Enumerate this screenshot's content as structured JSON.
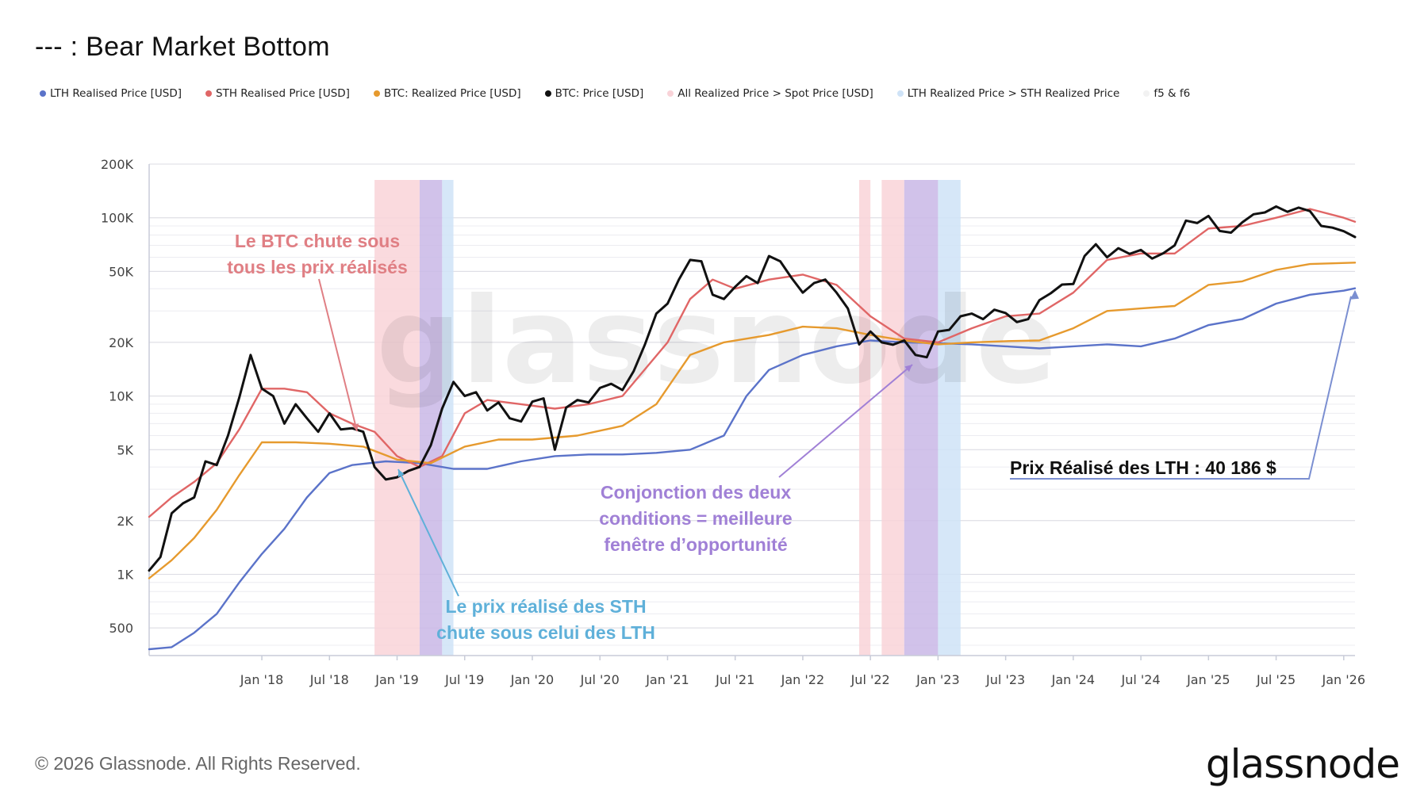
{
  "title": "--- : Bear Market Bottom",
  "legend": [
    {
      "label": "LTH Realised Price [USD]",
      "color": "#5b73c9"
    },
    {
      "label": "STH Realised Price [USD]",
      "color": "#e06666"
    },
    {
      "label": "BTC: Realized Price [USD]",
      "color": "#e69a2e"
    },
    {
      "label": "BTC: Price [USD]",
      "color": "#111111"
    },
    {
      "label": "All Realized Price > Spot Price [USD]",
      "color": "#f9d3d8"
    },
    {
      "label": "LTH Realized Price > STH Realized Price",
      "color": "#cfe3f7"
    },
    {
      "label": "f5 & f6",
      "color": "#f2f2f2"
    }
  ],
  "footer": "© 2026 Glassnode. All Rights Reserved.",
  "logo": "glassnode",
  "watermark": "glassnode",
  "chart_data": {
    "type": "line",
    "y_scale": "log",
    "ylim": [
      350,
      200000
    ],
    "xlim": [
      "2017-03",
      "2026-02"
    ],
    "yticks": [
      {
        "value": 500,
        "label": "500"
      },
      {
        "value": 1000,
        "label": "1K"
      },
      {
        "value": 2000,
        "label": "2K"
      },
      {
        "value": 5000,
        "label": "5K"
      },
      {
        "value": 10000,
        "label": "10K"
      },
      {
        "value": 20000,
        "label": "20K"
      },
      {
        "value": 50000,
        "label": "50K"
      },
      {
        "value": 100000,
        "label": "100K"
      },
      {
        "value": 200000,
        "label": "200K"
      }
    ],
    "xticks": [
      {
        "t": "2018-01",
        "label": "Jan '18"
      },
      {
        "t": "2018-07",
        "label": "Jul '18"
      },
      {
        "t": "2019-01",
        "label": "Jan '19"
      },
      {
        "t": "2019-07",
        "label": "Jul '19"
      },
      {
        "t": "2020-01",
        "label": "Jan '20"
      },
      {
        "t": "2020-07",
        "label": "Jul '20"
      },
      {
        "t": "2021-01",
        "label": "Jan '21"
      },
      {
        "t": "2021-07",
        "label": "Jul '21"
      },
      {
        "t": "2022-01",
        "label": "Jan '22"
      },
      {
        "t": "2022-07",
        "label": "Jul '22"
      },
      {
        "t": "2023-01",
        "label": "Jan '23"
      },
      {
        "t": "2023-07",
        "label": "Jul '23"
      },
      {
        "t": "2024-01",
        "label": "Jan '24"
      },
      {
        "t": "2024-07",
        "label": "Jul '24"
      },
      {
        "t": "2025-01",
        "label": "Jan '25"
      },
      {
        "t": "2025-07",
        "label": "Jul '25"
      },
      {
        "t": "2026-01",
        "label": "Jan '26"
      }
    ],
    "bands": [
      {
        "kind": "all_realized_above_spot",
        "color": "#f9d3d8",
        "from": "2018-11",
        "to": "2019-03"
      },
      {
        "kind": "both",
        "color": "#c9b7e6",
        "from": "2019-03",
        "to": "2019-05"
      },
      {
        "kind": "lth_above_sth",
        "color": "#cfe3f7",
        "from": "2019-05",
        "to": "2019-06"
      },
      {
        "kind": "all_realized_above_spot",
        "color": "#f9d3d8",
        "from": "2022-06",
        "to": "2022-07"
      },
      {
        "kind": "all_realized_above_spot",
        "color": "#f9d3d8",
        "from": "2022-08",
        "to": "2022-10"
      },
      {
        "kind": "both",
        "color": "#c9b7e6",
        "from": "2022-10",
        "to": "2023-01"
      },
      {
        "kind": "lth_above_sth",
        "color": "#cfe3f7",
        "from": "2023-01",
        "to": "2023-03"
      }
    ],
    "series": [
      {
        "name": "LTH Realised Price [USD]",
        "color": "#5b73c9",
        "points": [
          [
            "2017-03",
            380
          ],
          [
            "2017-05",
            390
          ],
          [
            "2017-07",
            470
          ],
          [
            "2017-09",
            600
          ],
          [
            "2017-11",
            900
          ],
          [
            "2018-01",
            1300
          ],
          [
            "2018-03",
            1800
          ],
          [
            "2018-05",
            2700
          ],
          [
            "2018-07",
            3700
          ],
          [
            "2018-09",
            4100
          ],
          [
            "2018-12",
            4300
          ],
          [
            "2019-03",
            4200
          ],
          [
            "2019-06",
            3900
          ],
          [
            "2019-09",
            3900
          ],
          [
            "2019-12",
            4300
          ],
          [
            "2020-03",
            4600
          ],
          [
            "2020-06",
            4700
          ],
          [
            "2020-09",
            4700
          ],
          [
            "2020-12",
            4800
          ],
          [
            "2021-03",
            5000
          ],
          [
            "2021-06",
            6000
          ],
          [
            "2021-08",
            10000
          ],
          [
            "2021-10",
            14000
          ],
          [
            "2022-01",
            17000
          ],
          [
            "2022-04",
            19000
          ],
          [
            "2022-07",
            20500
          ],
          [
            "2022-10",
            20000
          ],
          [
            "2023-01",
            19800
          ],
          [
            "2023-04",
            19500
          ],
          [
            "2023-07",
            19000
          ],
          [
            "2023-10",
            18500
          ],
          [
            "2024-01",
            19000
          ],
          [
            "2024-04",
            19500
          ],
          [
            "2024-07",
            19000
          ],
          [
            "2024-10",
            21000
          ],
          [
            "2025-01",
            25000
          ],
          [
            "2025-04",
            27000
          ],
          [
            "2025-07",
            33000
          ],
          [
            "2025-10",
            37000
          ],
          [
            "2026-01",
            39000
          ],
          [
            "2026-02",
            40186
          ]
        ]
      },
      {
        "name": "STH Realised Price [USD]",
        "color": "#e06666",
        "points": [
          [
            "2017-03",
            2100
          ],
          [
            "2017-05",
            2700
          ],
          [
            "2017-07",
            3300
          ],
          [
            "2017-09",
            4200
          ],
          [
            "2017-11",
            6500
          ],
          [
            "2018-01",
            11000
          ],
          [
            "2018-03",
            11000
          ],
          [
            "2018-05",
            10500
          ],
          [
            "2018-07",
            8000
          ],
          [
            "2018-09",
            7000
          ],
          [
            "2018-11",
            6300
          ],
          [
            "2019-01",
            4600
          ],
          [
            "2019-03",
            4000
          ],
          [
            "2019-05",
            4600
          ],
          [
            "2019-07",
            8000
          ],
          [
            "2019-09",
            9500
          ],
          [
            "2019-12",
            9000
          ],
          [
            "2020-03",
            8500
          ],
          [
            "2020-06",
            9000
          ],
          [
            "2020-09",
            10000
          ],
          [
            "2021-01",
            20000
          ],
          [
            "2021-03",
            35000
          ],
          [
            "2021-05",
            45000
          ],
          [
            "2021-07",
            40000
          ],
          [
            "2021-10",
            45000
          ],
          [
            "2022-01",
            48000
          ],
          [
            "2022-04",
            42000
          ],
          [
            "2022-07",
            28000
          ],
          [
            "2022-10",
            21000
          ],
          [
            "2023-01",
            20000
          ],
          [
            "2023-04",
            24000
          ],
          [
            "2023-07",
            28000
          ],
          [
            "2023-10",
            29000
          ],
          [
            "2024-01",
            38000
          ],
          [
            "2024-04",
            58000
          ],
          [
            "2024-07",
            63000
          ],
          [
            "2024-10",
            63000
          ],
          [
            "2025-01",
            87000
          ],
          [
            "2025-04",
            90000
          ],
          [
            "2025-07",
            100000
          ],
          [
            "2025-10",
            112000
          ],
          [
            "2026-01",
            100000
          ],
          [
            "2026-02",
            95000
          ]
        ]
      },
      {
        "name": "BTC: Realized Price [USD]",
        "color": "#e69a2e",
        "points": [
          [
            "2017-03",
            950
          ],
          [
            "2017-05",
            1200
          ],
          [
            "2017-07",
            1600
          ],
          [
            "2017-09",
            2300
          ],
          [
            "2017-11",
            3600
          ],
          [
            "2018-01",
            5500
          ],
          [
            "2018-04",
            5500
          ],
          [
            "2018-07",
            5400
          ],
          [
            "2018-10",
            5200
          ],
          [
            "2019-01",
            4400
          ],
          [
            "2019-04",
            4200
          ],
          [
            "2019-07",
            5200
          ],
          [
            "2019-10",
            5700
          ],
          [
            "2020-01",
            5700
          ],
          [
            "2020-05",
            6000
          ],
          [
            "2020-09",
            6800
          ],
          [
            "2020-12",
            9000
          ],
          [
            "2021-03",
            17000
          ],
          [
            "2021-06",
            20000
          ],
          [
            "2021-10",
            22000
          ],
          [
            "2022-01",
            24500
          ],
          [
            "2022-04",
            24000
          ],
          [
            "2022-07",
            22000
          ],
          [
            "2022-10",
            20500
          ],
          [
            "2023-01",
            19500
          ],
          [
            "2023-04",
            20000
          ],
          [
            "2023-07",
            20300
          ],
          [
            "2023-10",
            20500
          ],
          [
            "2024-01",
            24000
          ],
          [
            "2024-04",
            30000
          ],
          [
            "2024-07",
            31000
          ],
          [
            "2024-10",
            32000
          ],
          [
            "2025-01",
            42000
          ],
          [
            "2025-04",
            44000
          ],
          [
            "2025-07",
            51000
          ],
          [
            "2025-10",
            55000
          ],
          [
            "2026-02",
            56000
          ]
        ]
      },
      {
        "name": "BTC: Price [USD]",
        "color": "#111111",
        "points": [
          [
            "2017-03",
            1050
          ],
          [
            "2017-04",
            1250
          ],
          [
            "2017-05",
            2200
          ],
          [
            "2017-06",
            2500
          ],
          [
            "2017-07",
            2700
          ],
          [
            "2017-08",
            4300
          ],
          [
            "2017-09",
            4100
          ],
          [
            "2017-10",
            6000
          ],
          [
            "2017-11",
            9800
          ],
          [
            "2017-12",
            17000
          ],
          [
            "2018-01",
            11000
          ],
          [
            "2018-02",
            10000
          ],
          [
            "2018-03",
            7000
          ],
          [
            "2018-04",
            9000
          ],
          [
            "2018-05",
            7500
          ],
          [
            "2018-06",
            6300
          ],
          [
            "2018-07",
            8000
          ],
          [
            "2018-08",
            6500
          ],
          [
            "2018-09",
            6600
          ],
          [
            "2018-10",
            6300
          ],
          [
            "2018-11",
            4000
          ],
          [
            "2018-12",
            3400
          ],
          [
            "2019-01",
            3500
          ],
          [
            "2019-02",
            3800
          ],
          [
            "2019-03",
            4000
          ],
          [
            "2019-04",
            5300
          ],
          [
            "2019-05",
            8500
          ],
          [
            "2019-06",
            12000
          ],
          [
            "2019-07",
            10000
          ],
          [
            "2019-08",
            10500
          ],
          [
            "2019-09",
            8300
          ],
          [
            "2019-10",
            9200
          ],
          [
            "2019-11",
            7500
          ],
          [
            "2019-12",
            7200
          ],
          [
            "2020-01",
            9300
          ],
          [
            "2020-02",
            9700
          ],
          [
            "2020-03",
            5000
          ],
          [
            "2020-04",
            8600
          ],
          [
            "2020-05",
            9500
          ],
          [
            "2020-06",
            9200
          ],
          [
            "2020-07",
            11100
          ],
          [
            "2020-08",
            11700
          ],
          [
            "2020-09",
            10800
          ],
          [
            "2020-10",
            13800
          ],
          [
            "2020-11",
            19500
          ],
          [
            "2020-12",
            29000
          ],
          [
            "2021-01",
            33000
          ],
          [
            "2021-02",
            45000
          ],
          [
            "2021-03",
            58000
          ],
          [
            "2021-04",
            57000
          ],
          [
            "2021-05",
            37000
          ],
          [
            "2021-06",
            35000
          ],
          [
            "2021-07",
            41000
          ],
          [
            "2021-08",
            47000
          ],
          [
            "2021-09",
            43000
          ],
          [
            "2021-10",
            61000
          ],
          [
            "2021-11",
            57000
          ],
          [
            "2021-12",
            46000
          ],
          [
            "2022-01",
            38000
          ],
          [
            "2022-02",
            43000
          ],
          [
            "2022-03",
            45000
          ],
          [
            "2022-04",
            38000
          ],
          [
            "2022-05",
            31000
          ],
          [
            "2022-06",
            19500
          ],
          [
            "2022-07",
            23000
          ],
          [
            "2022-08",
            20000
          ],
          [
            "2022-09",
            19400
          ],
          [
            "2022-10",
            20500
          ],
          [
            "2022-11",
            17000
          ],
          [
            "2022-12",
            16500
          ],
          [
            "2023-01",
            23000
          ],
          [
            "2023-02",
            23500
          ],
          [
            "2023-03",
            28000
          ],
          [
            "2023-04",
            29000
          ],
          [
            "2023-05",
            27000
          ],
          [
            "2023-06",
            30500
          ],
          [
            "2023-07",
            29200
          ],
          [
            "2023-08",
            26000
          ],
          [
            "2023-09",
            27000
          ],
          [
            "2023-10",
            34500
          ],
          [
            "2023-11",
            37700
          ],
          [
            "2023-12",
            42200
          ],
          [
            "2024-01",
            42500
          ],
          [
            "2024-02",
            61000
          ],
          [
            "2024-03",
            71000
          ],
          [
            "2024-04",
            60000
          ],
          [
            "2024-05",
            67500
          ],
          [
            "2024-06",
            62700
          ],
          [
            "2024-07",
            66000
          ],
          [
            "2024-08",
            59000
          ],
          [
            "2024-09",
            63300
          ],
          [
            "2024-10",
            70000
          ],
          [
            "2024-11",
            96400
          ],
          [
            "2024-12",
            93400
          ],
          [
            "2025-01",
            102400
          ],
          [
            "2025-02",
            84300
          ],
          [
            "2025-03",
            82500
          ],
          [
            "2025-04",
            94200
          ],
          [
            "2025-05",
            104600
          ],
          [
            "2025-06",
            107100
          ],
          [
            "2025-07",
            115700
          ],
          [
            "2025-08",
            108000
          ],
          [
            "2025-09",
            114000
          ],
          [
            "2025-10",
            109000
          ],
          [
            "2025-11",
            90000
          ],
          [
            "2025-12",
            88000
          ],
          [
            "2026-01",
            84000
          ],
          [
            "2026-02",
            78000
          ]
        ]
      }
    ],
    "annotations": [
      {
        "lines": [
          "Le BTC chute sous",
          "tous les prix réalisés"
        ],
        "color": "#e07f84"
      },
      {
        "lines": [
          "Le prix réalisé des STH",
          "chute sous celui des LTH"
        ],
        "color": "#5fb0d9"
      },
      {
        "lines": [
          "Conjonction des deux",
          "conditions = meilleure",
          "fenêtre d’opportunité"
        ],
        "color": "#a080d6"
      },
      {
        "lines": [
          "Prix Réalisé des LTH : 40 186 $"
        ],
        "color": "#111111"
      }
    ]
  }
}
